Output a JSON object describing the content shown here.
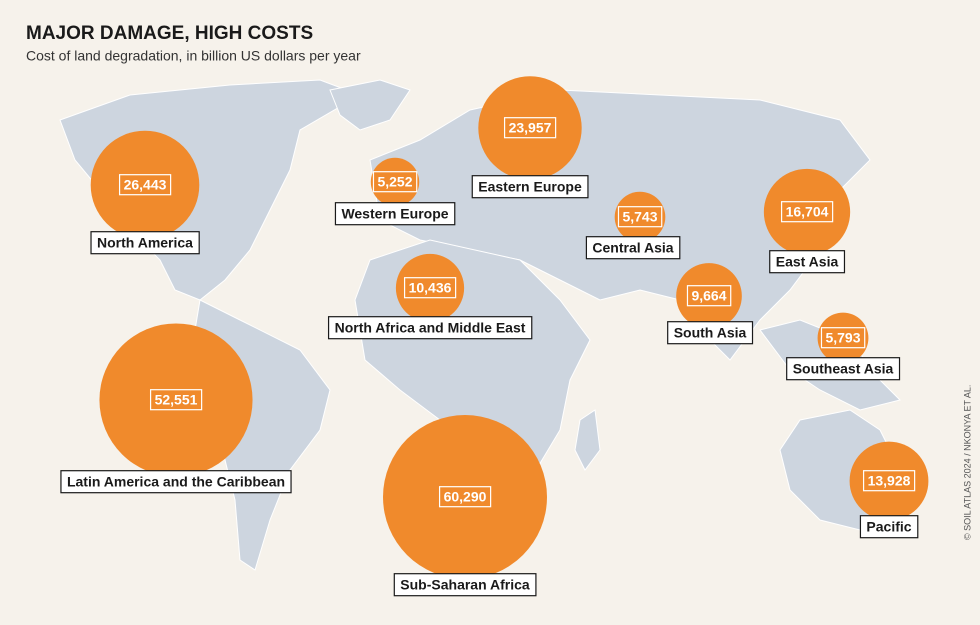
{
  "chart_data": {
    "type": "bubble_map",
    "title": "MAJOR DAMAGE, HIGH COSTS",
    "subtitle": "Cost of land degradation, in billion US dollars per year",
    "source": "© SOIL ATLAS 2024 / NKONYA ET AL.",
    "categories": [
      "North America",
      "Western Europe",
      "Eastern Europe",
      "Central Asia",
      "East Asia",
      "North Africa and Middle East",
      "South Asia",
      "Southeast Asia",
      "Latin America and the Caribbean",
      "Sub-Saharan Africa",
      "Pacific"
    ],
    "values": [
      26443,
      5252,
      23957,
      5743,
      16704,
      10436,
      9664,
      5793,
      52551,
      60290,
      13928
    ],
    "value_labels": [
      "26,443",
      "5,252",
      "23,957",
      "5,743",
      "16,704",
      "10,436",
      "9,664",
      "5,793",
      "52,551",
      "60,290",
      "13,928"
    ],
    "color": "#f08a2c"
  }
}
